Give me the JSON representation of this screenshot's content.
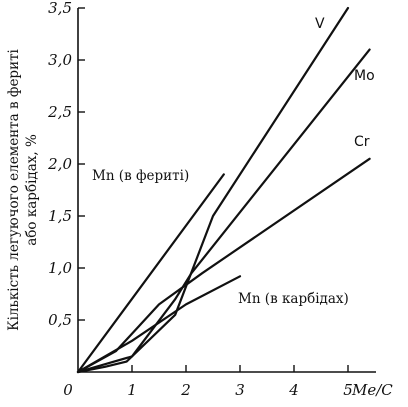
{
  "chart_data": {
    "type": "line",
    "title": "",
    "xlabel": "Me/C",
    "ylabel_lines": [
      "Кількість легуючого елемента в фериті",
      "або карбідах, %"
    ],
    "xlim": [
      0,
      5.6
    ],
    "ylim": [
      0,
      3.5
    ],
    "x_ticks": [
      "0",
      "1",
      "2",
      "3",
      "4",
      "5"
    ],
    "x_tick_values": [
      0,
      1,
      2,
      3,
      4,
      5
    ],
    "y_ticks": [
      "0,5",
      "1,0",
      "1,5",
      "2,0",
      "2,5",
      "3,0",
      "3,5"
    ],
    "y_tick_values": [
      0.5,
      1.0,
      1.5,
      2.0,
      2.5,
      3.0,
      3.5
    ],
    "grid": false,
    "series": [
      {
        "name": "V",
        "x": [
          0,
          0.5,
          0.9,
          1.8,
          2.5,
          5.0
        ],
        "y": [
          0,
          0.05,
          0.1,
          0.55,
          1.5,
          3.5
        ]
      },
      {
        "name": "Mo",
        "x": [
          0,
          1.0,
          1.8,
          2.1,
          5.4
        ],
        "y": [
          0,
          0.15,
          0.7,
          0.95,
          3.1
        ]
      },
      {
        "name": "Cr",
        "x": [
          0,
          0.7,
          1.5,
          2.3,
          5.4
        ],
        "y": [
          0,
          0.2,
          0.65,
          0.95,
          2.05
        ]
      },
      {
        "name": "Mn (в фериті)",
        "x": [
          0,
          2.7
        ],
        "y": [
          0,
          1.9
        ]
      },
      {
        "name": "Mn (в карбідах)",
        "x": [
          0,
          1.0,
          2.0,
          3.0
        ],
        "y": [
          0,
          0.3,
          0.65,
          0.92
        ]
      }
    ],
    "labels": {
      "V": "V",
      "Mo": "Mo",
      "Cr": "Cr",
      "Mn_ferrite": "Mn (в фериті)",
      "Mn_carbide": "Mn (в карбідах)"
    }
  }
}
